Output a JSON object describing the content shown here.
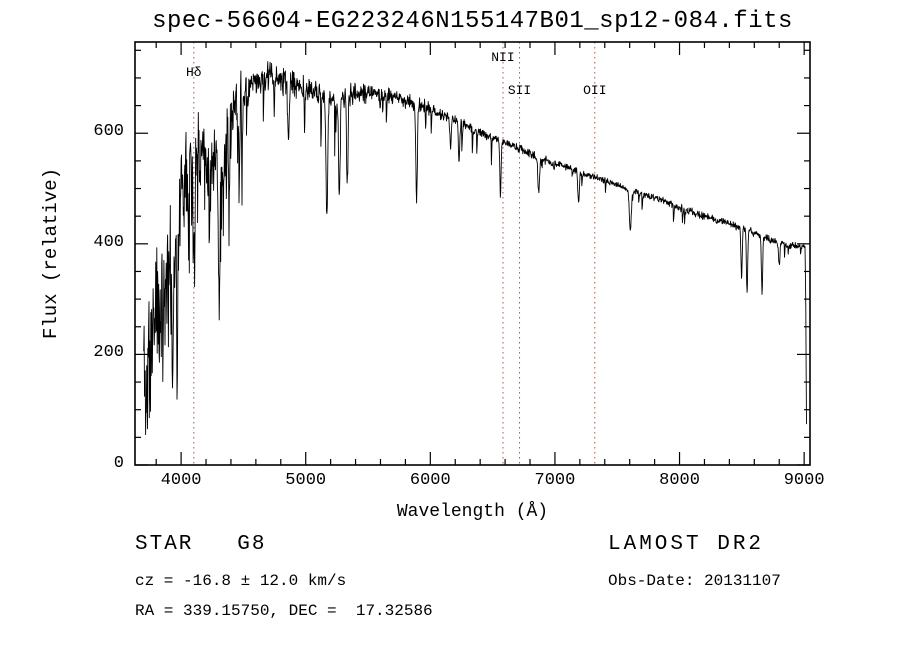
{
  "title": "spec-56604-EG223246N155147B01_sp12-084.fits",
  "chart_data": {
    "type": "line",
    "title": "spec-56604-EG223246N155147B01_sp12-084.fits",
    "xlabel": "Wavelength (Å)",
    "ylabel": "Flux (relative)",
    "xlim": [
      3630,
      9047
    ],
    "ylim": [
      0,
      765
    ],
    "x_major_ticks": [
      4000,
      5000,
      6000,
      7000,
      8000,
      9000
    ],
    "x_minor_step": 200,
    "y_major_ticks": [
      0,
      200,
      400,
      600
    ],
    "y_minor_step": 50,
    "grid": false,
    "line_color": "#000000",
    "spectral_line_color": "#aa5548",
    "spectral_lines": [
      {
        "label": "Hδ",
        "wavelength": 4102,
        "label_y": 65
      },
      {
        "label": "NII",
        "wavelength": 6583,
        "label_y": 50
      },
      {
        "label": "SII",
        "wavelength": 6716,
        "label_y": 83
      },
      {
        "label": "OII",
        "wavelength": 7320,
        "label_y": 83
      }
    ],
    "spectrum": {
      "start": 3700,
      "end": 9020,
      "step": 3,
      "seed": 11,
      "continuum": [
        [
          3700,
          200
        ],
        [
          3720,
          130
        ],
        [
          3760,
          260
        ],
        [
          3800,
          300
        ],
        [
          3850,
          325
        ],
        [
          3900,
          360
        ],
        [
          3950,
          405
        ],
        [
          4000,
          500
        ],
        [
          4060,
          560
        ],
        [
          4120,
          575
        ],
        [
          4180,
          580
        ],
        [
          4240,
          555
        ],
        [
          4300,
          560
        ],
        [
          4360,
          620
        ],
        [
          4420,
          645
        ],
        [
          4480,
          665
        ],
        [
          4550,
          685
        ],
        [
          4620,
          695
        ],
        [
          4700,
          705
        ],
        [
          4780,
          700
        ],
        [
          4860,
          690
        ],
        [
          4950,
          685
        ],
        [
          5050,
          675
        ],
        [
          5150,
          665
        ],
        [
          5250,
          665
        ],
        [
          5350,
          670
        ],
        [
          5450,
          675
        ],
        [
          5550,
          672
        ],
        [
          5650,
          668
        ],
        [
          5750,
          662
        ],
        [
          5850,
          655
        ],
        [
          5950,
          648
        ],
        [
          6050,
          638
        ],
        [
          6150,
          628
        ],
        [
          6250,
          618
        ],
        [
          6350,
          608
        ],
        [
          6450,
          598
        ],
        [
          6550,
          588
        ],
        [
          6650,
          578
        ],
        [
          6750,
          568
        ],
        [
          6850,
          558
        ],
        [
          6950,
          548
        ],
        [
          7050,
          542
        ],
        [
          7150,
          534
        ],
        [
          7250,
          526
        ],
        [
          7350,
          518
        ],
        [
          7450,
          510
        ],
        [
          7550,
          502
        ],
        [
          7650,
          494
        ],
        [
          7750,
          487
        ],
        [
          7850,
          479
        ],
        [
          7950,
          471
        ],
        [
          8050,
          462
        ],
        [
          8150,
          453
        ],
        [
          8250,
          446
        ],
        [
          8350,
          440
        ],
        [
          8450,
          432
        ],
        [
          8550,
          424
        ],
        [
          8650,
          415
        ],
        [
          8750,
          406
        ],
        [
          8850,
          399
        ],
        [
          8950,
          396
        ],
        [
          9000,
          398
        ],
        [
          9008,
          392
        ],
        [
          9014,
          260
        ],
        [
          9020,
          30
        ]
      ],
      "features": [
        [
          3934,
          220,
          6
        ],
        [
          3969,
          200,
          6
        ],
        [
          4102,
          160,
          7
        ],
        [
          4227,
          130,
          5
        ],
        [
          4305,
          260,
          7
        ],
        [
          4340,
          150,
          6
        ],
        [
          4383,
          120,
          5
        ],
        [
          4861,
          100,
          6
        ],
        [
          5170,
          210,
          7
        ],
        [
          5270,
          200,
          6
        ],
        [
          5332,
          160,
          5
        ],
        [
          5890,
          170,
          6
        ],
        [
          6162,
          60,
          5
        ],
        [
          6230,
          70,
          5
        ],
        [
          6563,
          100,
          5
        ],
        [
          6870,
          65,
          7
        ],
        [
          7190,
          60,
          6
        ],
        [
          7605,
          75,
          8
        ],
        [
          8498,
          90,
          5
        ],
        [
          8542,
          115,
          5
        ],
        [
          8662,
          105,
          5
        ],
        [
          8800,
          40,
          6
        ]
      ],
      "noise_regions": [
        [
          3700,
          3900,
          140
        ],
        [
          3900,
          4150,
          110
        ],
        [
          4150,
          4500,
          70
        ],
        [
          4500,
          5000,
          30
        ],
        [
          5000,
          5500,
          24
        ],
        [
          5500,
          6000,
          17
        ],
        [
          6000,
          6500,
          11
        ],
        [
          6500,
          7000,
          9
        ],
        [
          7000,
          8000,
          7
        ],
        [
          8000,
          9020,
          8
        ]
      ],
      "spike_regions": [
        [
          3700,
          4500,
          0.1,
          160
        ],
        [
          4500,
          5400,
          0.05,
          90
        ],
        [
          5400,
          6600,
          0.03,
          60
        ],
        [
          6600,
          8400,
          0.02,
          35
        ],
        [
          8400,
          9000,
          0.02,
          30
        ]
      ]
    }
  },
  "annotations": {
    "class_label": "STAR   G8",
    "survey": "LAMOST DR2",
    "cz": "cz = -16.8 ± 12.0 km/s",
    "obs_date": "Obs-Date: 20131107",
    "radec": "RA = 339.15750, DEC =  17.32586"
  }
}
